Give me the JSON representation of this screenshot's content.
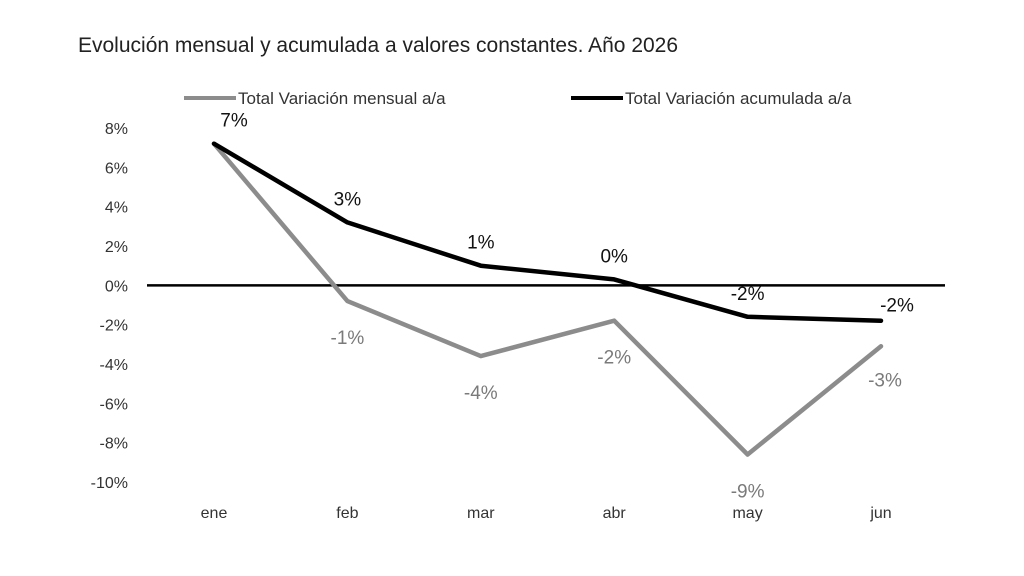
{
  "chart_data": {
    "type": "line",
    "title": "Evolución mensual y acumulada a valores constantes. Año 2026",
    "categories": [
      "ene",
      "feb",
      "mar",
      "abr",
      "may",
      "jun"
    ],
    "y_ticks": [
      "8%",
      "6%",
      "4%",
      "2%",
      "0%",
      "-2%",
      "-4%",
      "-6%",
      "-8%",
      "-10%"
    ],
    "ylim": [
      -10,
      8
    ],
    "grid": false,
    "legend_position": "top",
    "series": [
      {
        "name": "Total Variación mensual a/a",
        "color": "#8c8c8c",
        "values": [
          7.2,
          -0.8,
          -3.6,
          -1.8,
          -8.6,
          -3.1
        ],
        "labels": [
          "",
          "-1%",
          "-4%",
          "-2%",
          "-9%",
          "-3%"
        ]
      },
      {
        "name": "Total Variación acumulada a/a",
        "color": "#000000",
        "values": [
          7.2,
          3.2,
          1.0,
          0.3,
          -1.6,
          -1.8
        ],
        "labels": [
          "7%",
          "3%",
          "1%",
          "0%",
          "-2%",
          "-2%"
        ]
      }
    ]
  }
}
